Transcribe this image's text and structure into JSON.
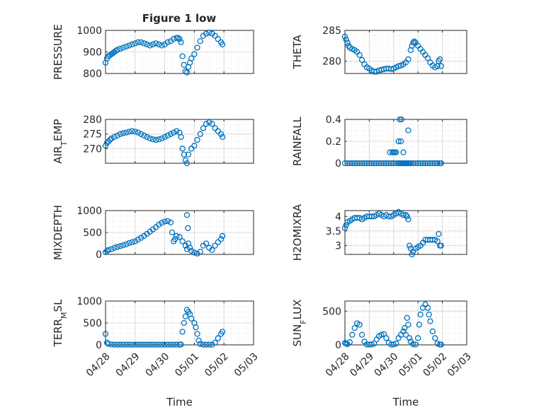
{
  "figure_title": "Figure 1 low",
  "colors": {
    "marker": "#0072BD",
    "axis": "#262626",
    "grid": "#d9d9d9"
  },
  "chart_data": [
    {
      "type": "scatter",
      "title": "Figure 1 low",
      "ylabel": "PRESSURE",
      "ylabel_sub": "",
      "xlim": [
        0,
        5
      ],
      "ylim": [
        800,
        1000
      ],
      "yticks": [
        800,
        900,
        1000
      ],
      "ytick_labels": [
        "800",
        "900",
        "1000"
      ],
      "xticks": [
        0,
        1,
        2,
        3,
        4,
        5
      ],
      "xtick_labels": [
        "04/28",
        "04/29",
        "04/30",
        "05/01",
        "05/02",
        "05/03"
      ],
      "show_xtick_labels": false,
      "xlabel": "",
      "grid": true,
      "series": [
        {
          "x": [
            0.0,
            0.05,
            0.1,
            0.15,
            0.2,
            0.25,
            0.3,
            0.35,
            0.4,
            0.5,
            0.6,
            0.7,
            0.8,
            0.9,
            1.0,
            1.1,
            1.2,
            1.3,
            1.4,
            1.5,
            1.6,
            1.7,
            1.8,
            1.9,
            2.0,
            2.1,
            2.2,
            2.3,
            2.4,
            2.45,
            2.5,
            2.55,
            2.6,
            2.65,
            2.7,
            2.75,
            2.8,
            2.85,
            2.9,
            3.0,
            3.1,
            3.2,
            3.3,
            3.4,
            3.5,
            3.6,
            3.7,
            3.8,
            3.9,
            3.95
          ],
          "y": [
            850,
            870,
            880,
            885,
            890,
            895,
            900,
            905,
            910,
            915,
            920,
            925,
            930,
            935,
            940,
            945,
            945,
            940,
            935,
            930,
            935,
            940,
            935,
            930,
            935,
            945,
            950,
            960,
            965,
            965,
            960,
            945,
            880,
            840,
            810,
            805,
            830,
            850,
            870,
            890,
            920,
            950,
            975,
            985,
            990,
            985,
            975,
            960,
            945,
            935
          ]
        }
      ]
    },
    {
      "type": "scatter",
      "title": "",
      "ylabel": "THETA",
      "ylabel_sub": "",
      "xlim": [
        0,
        5
      ],
      "ylim": [
        278,
        285
      ],
      "yticks": [
        280,
        285
      ],
      "ytick_labels": [
        "280",
        "285"
      ],
      "xticks": [
        0,
        1,
        2,
        3,
        4,
        5
      ],
      "xtick_labels": [
        "04/28",
        "04/29",
        "04/30",
        "05/01",
        "05/02",
        "05/03"
      ],
      "show_xtick_labels": false,
      "xlabel": "",
      "grid": true,
      "series": [
        {
          "x": [
            0.0,
            0.05,
            0.1,
            0.15,
            0.2,
            0.3,
            0.4,
            0.5,
            0.6,
            0.7,
            0.8,
            0.9,
            1.0,
            1.1,
            1.2,
            1.3,
            1.4,
            1.5,
            1.6,
            1.7,
            1.8,
            1.9,
            2.0,
            2.1,
            2.2,
            2.3,
            2.4,
            2.5,
            2.6,
            2.7,
            2.75,
            2.8,
            2.85,
            2.9,
            3.0,
            3.1,
            3.2,
            3.3,
            3.4,
            3.5,
            3.6,
            3.7,
            3.8,
            3.85,
            3.9,
            3.95
          ],
          "y": [
            284,
            283.5,
            283,
            282.5,
            282.2,
            282,
            281.8,
            281.5,
            281,
            280.2,
            279.5,
            279,
            278.8,
            278.5,
            278.3,
            278.3,
            278.5,
            278.6,
            278.7,
            278.8,
            278.8,
            278.7,
            278.8,
            279,
            279.2,
            279.3,
            279.5,
            279.8,
            280.3,
            281.8,
            282.5,
            283,
            283.2,
            283,
            282.5,
            282,
            281.5,
            281,
            280.5,
            279.8,
            279.3,
            279,
            279.2,
            280,
            280.3,
            279.2
          ]
        }
      ]
    },
    {
      "type": "scatter",
      "title": "",
      "ylabel": "AIR",
      "ylabel_sub": "T",
      "ylabel_rest": "EMP",
      "xlim": [
        0,
        5
      ],
      "ylim": [
        265,
        280
      ],
      "yticks": [
        270,
        275,
        280
      ],
      "ytick_labels": [
        "270",
        "275",
        "280"
      ],
      "xticks": [
        0,
        1,
        2,
        3,
        4,
        5
      ],
      "xtick_labels": [
        "04/28",
        "04/29",
        "04/30",
        "05/01",
        "05/02",
        "05/03"
      ],
      "show_xtick_labels": false,
      "xlabel": "",
      "grid": true,
      "series": [
        {
          "x": [
            0.0,
            0.05,
            0.1,
            0.15,
            0.2,
            0.3,
            0.4,
            0.5,
            0.6,
            0.7,
            0.8,
            0.9,
            1.0,
            1.1,
            1.2,
            1.3,
            1.4,
            1.5,
            1.6,
            1.7,
            1.8,
            1.9,
            2.0,
            2.1,
            2.2,
            2.3,
            2.4,
            2.5,
            2.55,
            2.6,
            2.65,
            2.7,
            2.75,
            2.8,
            2.9,
            3.0,
            3.1,
            3.2,
            3.3,
            3.4,
            3.5,
            3.6,
            3.7,
            3.8,
            3.9,
            3.95
          ],
          "y": [
            271,
            272,
            272.5,
            273,
            273.5,
            274,
            274.5,
            275,
            275.3,
            275.5,
            275.8,
            276,
            275.8,
            275.5,
            275,
            274.5,
            274,
            273.5,
            273.2,
            273,
            273.2,
            273.5,
            274,
            274.5,
            275,
            275.5,
            276,
            275.5,
            274,
            270,
            268,
            266,
            265,
            268,
            270,
            271,
            273,
            275,
            277,
            278.5,
            279,
            278.5,
            277,
            276,
            275,
            274
          ]
        }
      ]
    },
    {
      "type": "scatter",
      "title": "",
      "ylabel": "RAINFALL",
      "ylabel_sub": "",
      "xlim": [
        0,
        5
      ],
      "ylim": [
        0,
        0.4
      ],
      "yticks": [
        0,
        0.2,
        0.4
      ],
      "ytick_labels": [
        "0",
        "0.2",
        "0.4"
      ],
      "xticks": [
        0,
        1,
        2,
        3,
        4,
        5
      ],
      "xtick_labels": [
        "04/28",
        "04/29",
        "04/30",
        "05/01",
        "05/02",
        "05/03"
      ],
      "show_xtick_labels": false,
      "xlabel": "",
      "grid": true,
      "series": [
        {
          "x": [
            0.0,
            0.1,
            0.2,
            0.3,
            0.4,
            0.5,
            0.6,
            0.7,
            0.8,
            0.9,
            1.0,
            1.1,
            1.2,
            1.3,
            1.4,
            1.5,
            1.6,
            1.7,
            1.8,
            1.9,
            2.0,
            2.1,
            2.2,
            2.25,
            2.3,
            2.35,
            2.4,
            2.45,
            2.5,
            2.55,
            2.6,
            2.65,
            2.7,
            2.8,
            2.9,
            3.0,
            3.1,
            3.2,
            3.3,
            3.4,
            3.5,
            3.6,
            3.7,
            3.8,
            3.9,
            3.95,
            1.85,
            1.95,
            2.0,
            2.05,
            2.1,
            2.4,
            2.2,
            2.3,
            2.25,
            2.32,
            2.6
          ],
          "y": [
            0,
            0,
            0,
            0,
            0,
            0,
            0,
            0,
            0,
            0,
            0,
            0,
            0,
            0,
            0,
            0,
            0,
            0,
            0,
            0,
            0,
            0,
            0,
            0,
            0,
            0,
            0,
            0,
            0,
            0,
            0,
            0,
            0,
            0,
            0,
            0,
            0,
            0,
            0,
            0,
            0,
            0,
            0,
            0,
            0,
            0,
            0.1,
            0.1,
            0.1,
            0.1,
            0.1,
            0.1,
            0.2,
            0.2,
            0.4,
            0.4,
            0.3
          ]
        }
      ]
    },
    {
      "type": "scatter",
      "title": "",
      "ylabel": "MIXDEPTH",
      "ylabel_sub": "",
      "xlim": [
        0,
        5
      ],
      "ylim": [
        0,
        1000
      ],
      "yticks": [
        0,
        500,
        1000
      ],
      "ytick_labels": [
        "0",
        "500",
        "1000"
      ],
      "xticks": [
        0,
        1,
        2,
        3,
        4,
        5
      ],
      "xtick_labels": [
        "04/28",
        "04/29",
        "04/30",
        "05/01",
        "05/02",
        "05/03"
      ],
      "show_xtick_labels": false,
      "xlabel": "",
      "grid": true,
      "series": [
        {
          "x": [
            0.0,
            0.05,
            0.1,
            0.2,
            0.3,
            0.4,
            0.5,
            0.6,
            0.7,
            0.8,
            0.9,
            1.0,
            1.1,
            1.2,
            1.3,
            1.4,
            1.5,
            1.6,
            1.7,
            1.8,
            1.9,
            2.0,
            2.1,
            2.2,
            2.25,
            2.3,
            2.35,
            2.4,
            2.5,
            2.6,
            2.7,
            2.75,
            2.8,
            2.85,
            2.9,
            3.0,
            3.1,
            3.2,
            3.3,
            3.4,
            3.5,
            3.6,
            3.7,
            3.8,
            3.9,
            3.95,
            2.75,
            2.78
          ],
          "y": [
            50,
            80,
            100,
            120,
            150,
            170,
            190,
            210,
            230,
            260,
            280,
            300,
            340,
            380,
            420,
            470,
            520,
            570,
            620,
            680,
            720,
            750,
            760,
            730,
            500,
            300,
            350,
            420,
            400,
            300,
            200,
            120,
            250,
            150,
            80,
            40,
            20,
            60,
            200,
            250,
            150,
            100,
            200,
            280,
            350,
            420,
            900,
            600
          ]
        }
      ]
    },
    {
      "type": "scatter",
      "title": "",
      "ylabel": "H2OMIXRA",
      "ylabel_sub": "",
      "xlim": [
        0,
        5
      ],
      "ylim": [
        2.7,
        4.2
      ],
      "yticks": [
        3,
        3.5,
        4
      ],
      "ytick_labels": [
        "3",
        "3.5",
        "4"
      ],
      "xticks": [
        0,
        1,
        2,
        3,
        4,
        5
      ],
      "xtick_labels": [
        "04/28",
        "04/29",
        "04/30",
        "05/01",
        "05/02",
        "05/03"
      ],
      "show_xtick_labels": false,
      "xlabel": "",
      "grid": true,
      "series": [
        {
          "x": [
            0.0,
            0.05,
            0.1,
            0.2,
            0.3,
            0.4,
            0.5,
            0.6,
            0.7,
            0.8,
            0.9,
            1.0,
            1.1,
            1.2,
            1.3,
            1.4,
            1.5,
            1.6,
            1.7,
            1.8,
            1.9,
            2.0,
            2.1,
            2.2,
            2.3,
            2.4,
            2.5,
            2.55,
            2.6,
            2.65,
            2.7,
            2.75,
            2.8,
            2.9,
            3.0,
            3.1,
            3.2,
            3.3,
            3.4,
            3.5,
            3.6,
            3.7,
            3.8,
            3.85,
            3.9,
            3.95
          ],
          "y": [
            3.6,
            3.7,
            3.8,
            3.85,
            3.9,
            3.95,
            3.95,
            3.95,
            3.9,
            3.95,
            4.0,
            4.0,
            4.0,
            4.0,
            4.05,
            4.1,
            4.05,
            4.0,
            4.05,
            4.0,
            4.0,
            4.05,
            4.1,
            4.15,
            4.1,
            4.05,
            4.05,
            4.0,
            3.9,
            3.0,
            2.9,
            2.7,
            2.8,
            2.9,
            2.95,
            3.0,
            3.1,
            3.2,
            3.2,
            3.2,
            3.2,
            3.2,
            3.15,
            3.4,
            3.0,
            3.0
          ]
        }
      ]
    },
    {
      "type": "scatter",
      "title": "",
      "ylabel": "TERR",
      "ylabel_sub": "M",
      "ylabel_rest": "SL",
      "xlim": [
        0,
        5
      ],
      "ylim": [
        0,
        1000
      ],
      "yticks": [
        0,
        500,
        1000
      ],
      "ytick_labels": [
        "0",
        "500",
        "1000"
      ],
      "xticks": [
        0,
        1,
        2,
        3,
        4,
        5
      ],
      "xtick_labels": [
        "04/28",
        "04/29",
        "04/30",
        "05/01",
        "05/02",
        "05/03"
      ],
      "show_xtick_labels": true,
      "xlabel": "Time",
      "grid": true,
      "series": [
        {
          "x": [
            0.0,
            0.05,
            0.1,
            0.2,
            0.3,
            0.4,
            0.5,
            0.6,
            0.7,
            0.8,
            0.9,
            1.0,
            1.1,
            1.2,
            1.3,
            1.4,
            1.5,
            1.6,
            1.7,
            1.8,
            1.9,
            2.0,
            2.1,
            2.2,
            2.3,
            2.4,
            2.5,
            2.55,
            2.6,
            2.65,
            2.7,
            2.75,
            2.8,
            2.85,
            2.9,
            3.0,
            3.05,
            3.1,
            3.15,
            3.2,
            3.3,
            3.4,
            3.5,
            3.6,
            3.7,
            3.8,
            3.9,
            3.95
          ],
          "y": [
            250,
            50,
            20,
            10,
            5,
            5,
            5,
            5,
            5,
            5,
            5,
            5,
            5,
            5,
            5,
            5,
            5,
            5,
            5,
            5,
            5,
            5,
            5,
            5,
            5,
            5,
            5,
            10,
            300,
            500,
            650,
            800,
            750,
            700,
            600,
            500,
            400,
            250,
            100,
            20,
            5,
            5,
            5,
            5,
            50,
            150,
            250,
            300
          ]
        }
      ]
    },
    {
      "type": "scatter",
      "title": "",
      "ylabel": "SUN",
      "ylabel_sub": "F",
      "ylabel_rest": "LUX",
      "xlim": [
        0,
        5
      ],
      "ylim": [
        0,
        650
      ],
      "yticks": [
        0,
        500
      ],
      "ytick_labels": [
        "0",
        "500"
      ],
      "xticks": [
        0,
        1,
        2,
        3,
        4,
        5
      ],
      "xtick_labels": [
        "04/28",
        "04/29",
        "04/30",
        "05/01",
        "05/02",
        "05/03"
      ],
      "show_xtick_labels": true,
      "xlabel": "Time",
      "grid": true,
      "series": [
        {
          "x": [
            0.0,
            0.05,
            0.1,
            0.2,
            0.3,
            0.4,
            0.5,
            0.6,
            0.7,
            0.8,
            0.9,
            1.0,
            1.1,
            1.2,
            1.3,
            1.4,
            1.5,
            1.6,
            1.7,
            1.8,
            1.9,
            2.0,
            2.1,
            2.2,
            2.3,
            2.4,
            2.45,
            2.5,
            2.55,
            2.6,
            2.65,
            2.7,
            2.8,
            2.9,
            3.0,
            3.05,
            3.1,
            3.2,
            3.3,
            3.4,
            3.45,
            3.5,
            3.6,
            3.7,
            3.8,
            3.9,
            3.95
          ],
          "y": [
            30,
            20,
            10,
            40,
            150,
            250,
            320,
            300,
            150,
            50,
            5,
            5,
            5,
            20,
            80,
            130,
            150,
            160,
            100,
            30,
            5,
            5,
            20,
            100,
            150,
            200,
            250,
            150,
            400,
            300,
            100,
            50,
            10,
            5,
            100,
            300,
            450,
            550,
            600,
            550,
            450,
            350,
            200,
            100,
            20,
            5,
            5
          ]
        }
      ]
    }
  ]
}
